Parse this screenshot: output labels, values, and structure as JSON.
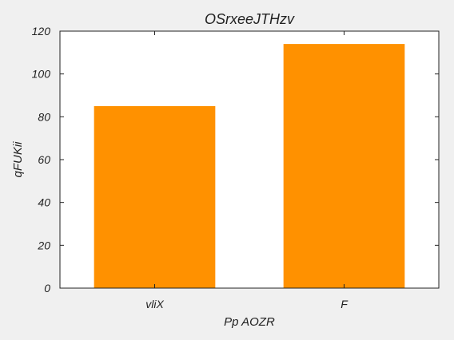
{
  "chart_data": {
    "type": "bar",
    "title": "OSrxeeJTHzv",
    "xlabel": "Pp AOZR",
    "ylabel": "qFUKii",
    "categories": [
      "vliX",
      "F"
    ],
    "values": [
      85,
      114
    ],
    "ylim": [
      0,
      120
    ],
    "yticks": [
      0,
      20,
      40,
      60,
      80,
      100,
      120
    ],
    "bar_color": "#ff9100",
    "grid": false,
    "legend": "none"
  }
}
